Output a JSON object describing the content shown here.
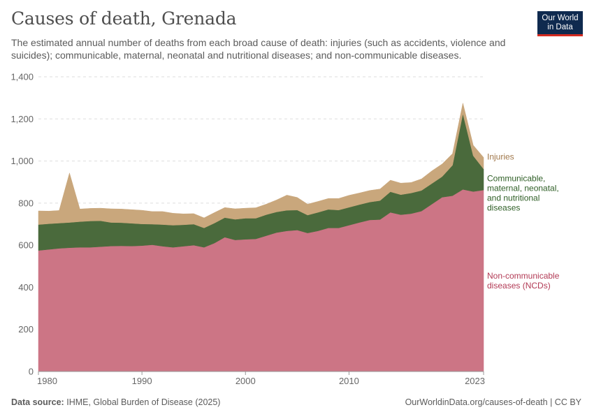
{
  "header": {
    "title": "Causes of death, Grenada",
    "subtitle": "The estimated annual number of deaths from each broad cause of death: injuries (such as accidents, violence and suicides); communicable, maternal, neonatal and nutritional diseases; and non-communicable diseases."
  },
  "logo": {
    "line1": "Our World",
    "line2": "in Data"
  },
  "footer": {
    "source_label": "Data source:",
    "source_text": "IHME, Global Burden of Disease (2025)",
    "url": "OurWorldinData.org/causes-of-death | CC BY"
  },
  "chart_data": {
    "type": "area",
    "stacked": true,
    "x": [
      1980,
      1981,
      1982,
      1983,
      1984,
      1985,
      1986,
      1987,
      1988,
      1989,
      1990,
      1991,
      1992,
      1993,
      1994,
      1995,
      1996,
      1997,
      1998,
      1999,
      2000,
      2001,
      2002,
      2003,
      2004,
      2005,
      2006,
      2007,
      2008,
      2009,
      2010,
      2011,
      2012,
      2013,
      2014,
      2015,
      2016,
      2017,
      2018,
      2019,
      2020,
      2021,
      2022,
      2023
    ],
    "ylim": [
      0,
      1400
    ],
    "yticks": [
      0,
      200,
      400,
      600,
      800,
      1000,
      1200,
      1400
    ],
    "ytick_labels": [
      "0",
      "200",
      "400",
      "600",
      "800",
      "1,000",
      "1,200",
      "1,400"
    ],
    "xticks": [
      1980,
      1990,
      2000,
      2010,
      2023
    ],
    "xtick_labels": [
      "1980",
      "1990",
      "2000",
      "2010",
      "2023"
    ],
    "grid": "horizontal",
    "series": [
      {
        "name": "Non-communicable diseases (NCDs)",
        "label_lines": [
          "Non-communicable",
          "diseases (NCDs)"
        ],
        "color": "#cc7585",
        "label_color": "#b23a55",
        "values": [
          575,
          580,
          585,
          588,
          590,
          590,
          593,
          596,
          597,
          596,
          598,
          602,
          595,
          590,
          595,
          600,
          590,
          610,
          638,
          625,
          628,
          630,
          645,
          660,
          668,
          672,
          658,
          668,
          682,
          682,
          695,
          708,
          720,
          722,
          756,
          745,
          750,
          762,
          795,
          828,
          835,
          865,
          855,
          862
        ]
      },
      {
        "name": "Communicable, maternal, neonatal, and nutritional diseases",
        "label_lines": [
          "Communicable,",
          "maternal, neonatal,",
          "and nutritional",
          "diseases"
        ],
        "color": "#4a6a3c",
        "label_color": "#2e5e25",
        "values": [
          123,
          122,
          120,
          120,
          122,
          125,
          123,
          112,
          110,
          108,
          103,
          98,
          103,
          105,
          102,
          100,
          92,
          95,
          93,
          98,
          100,
          98,
          100,
          98,
          98,
          95,
          85,
          88,
          88,
          85,
          85,
          85,
          85,
          90,
          98,
          95,
          98,
          98,
          98,
          98,
          145,
          360,
          170,
          100
        ]
      },
      {
        "name": "Injuries",
        "label_lines": [
          "Injuries"
        ],
        "color": "#c9a77c",
        "label_color": "#a0774a",
        "values": [
          65,
          60,
          60,
          235,
          60,
          60,
          60,
          65,
          65,
          65,
          65,
          60,
          62,
          57,
          52,
          50,
          48,
          50,
          48,
          50,
          48,
          50,
          50,
          57,
          72,
          60,
          52,
          52,
          52,
          55,
          57,
          55,
          55,
          55,
          55,
          55,
          50,
          55,
          60,
          60,
          55,
          50,
          50,
          55
        ]
      }
    ]
  }
}
